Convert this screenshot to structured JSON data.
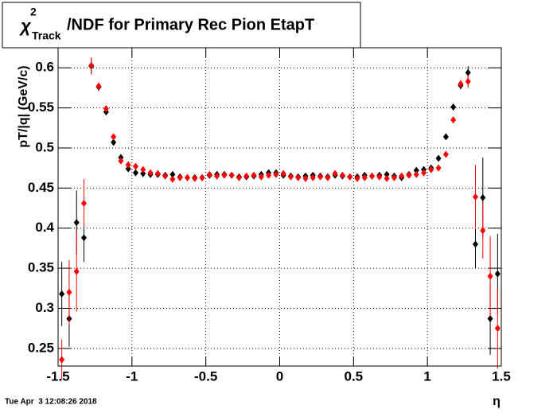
{
  "chart_data": {
    "type": "scatter",
    "title": {
      "symbol": "χ",
      "superscript": "2",
      "subscript": "Track",
      "text": "/NDF for Primary Rec Pion EtapT"
    },
    "y_label": "pT/|q| (GeV/c)",
    "x_label": "η",
    "timestamp": "Tue Apr  3 12:08:26 2018",
    "xlim": [
      -1.5,
      1.5
    ],
    "xticks": [
      -1.5,
      -1,
      -0.5,
      0,
      0.5,
      1,
      1.5
    ],
    "ylim": [
      0.228,
      0.625
    ],
    "yticks": [
      0.25,
      0.3,
      0.35,
      0.4,
      0.45,
      0.5,
      0.55,
      0.6
    ],
    "grid": true,
    "x": [
      -1.475,
      -1.425,
      -1.375,
      -1.325,
      -1.275,
      -1.225,
      -1.175,
      -1.125,
      -1.075,
      -1.025,
      -0.975,
      -0.925,
      -0.875,
      -0.825,
      -0.775,
      -0.725,
      -0.675,
      -0.625,
      -0.575,
      -0.525,
      -0.475,
      -0.425,
      -0.375,
      -0.325,
      -0.275,
      -0.225,
      -0.175,
      -0.125,
      -0.075,
      -0.025,
      0.025,
      0.075,
      0.125,
      0.175,
      0.225,
      0.275,
      0.325,
      0.375,
      0.425,
      0.475,
      0.525,
      0.575,
      0.625,
      0.675,
      0.725,
      0.775,
      0.825,
      0.875,
      0.925,
      0.975,
      1.025,
      1.075,
      1.125,
      1.175,
      1.225,
      1.275,
      1.325,
      1.375,
      1.425,
      1.475
    ],
    "series": [
      {
        "color": "#000000",
        "values": [
          0.318,
          0.287,
          0.407,
          0.388,
          0.602,
          0.576,
          0.545,
          0.507,
          0.488,
          0.474,
          0.469,
          0.468,
          0.467,
          0.467,
          0.466,
          0.467,
          0.464,
          0.463,
          0.463,
          0.463,
          0.466,
          0.467,
          0.467,
          0.466,
          0.464,
          0.464,
          0.465,
          0.467,
          0.469,
          0.469,
          0.466,
          0.465,
          0.464,
          0.465,
          0.466,
          0.465,
          0.464,
          0.466,
          0.465,
          0.464,
          0.464,
          0.466,
          0.465,
          0.466,
          0.467,
          0.465,
          0.463,
          0.467,
          0.472,
          0.473,
          0.475,
          0.487,
          0.514,
          0.551,
          0.578,
          0.594,
          0.38,
          0.438,
          0.287,
          0.343
        ],
        "errors": [
          0.04,
          0.035,
          0.04,
          0.03,
          0.01,
          0.005,
          0.004,
          0.004,
          0.003,
          0.003,
          0.002,
          0.002,
          0.002,
          0.002,
          0.002,
          0.002,
          0.002,
          0.002,
          0.002,
          0.002,
          0.002,
          0.002,
          0.002,
          0.002,
          0.002,
          0.002,
          0.002,
          0.002,
          0.002,
          0.002,
          0.002,
          0.002,
          0.002,
          0.002,
          0.002,
          0.002,
          0.002,
          0.002,
          0.002,
          0.002,
          0.002,
          0.002,
          0.002,
          0.002,
          0.002,
          0.002,
          0.002,
          0.002,
          0.002,
          0.002,
          0.003,
          0.003,
          0.004,
          0.004,
          0.005,
          0.008,
          0.03,
          0.05,
          0.045,
          0.05
        ]
      },
      {
        "color": "#ff0000",
        "values": [
          0.236,
          0.32,
          0.346,
          0.431,
          0.603,
          0.577,
          0.549,
          0.514,
          0.484,
          0.479,
          0.477,
          0.473,
          0.469,
          0.468,
          0.465,
          0.461,
          0.463,
          0.463,
          0.462,
          0.463,
          0.467,
          0.465,
          0.466,
          0.466,
          0.463,
          0.465,
          0.466,
          0.464,
          0.466,
          0.467,
          0.468,
          0.464,
          0.463,
          0.462,
          0.463,
          0.464,
          0.463,
          0.468,
          0.466,
          0.464,
          0.462,
          0.463,
          0.465,
          0.464,
          0.462,
          0.463,
          0.465,
          0.466,
          0.467,
          0.469,
          0.473,
          0.475,
          0.492,
          0.535,
          0.58,
          0.583,
          0.439,
          0.397,
          0.34,
          0.275
        ],
        "errors": [
          0.025,
          0.04,
          0.05,
          0.03,
          0.01,
          0.005,
          0.004,
          0.004,
          0.003,
          0.003,
          0.002,
          0.002,
          0.002,
          0.002,
          0.002,
          0.002,
          0.002,
          0.002,
          0.002,
          0.002,
          0.002,
          0.002,
          0.002,
          0.002,
          0.002,
          0.002,
          0.002,
          0.002,
          0.002,
          0.002,
          0.002,
          0.002,
          0.002,
          0.002,
          0.002,
          0.002,
          0.002,
          0.002,
          0.002,
          0.002,
          0.002,
          0.002,
          0.002,
          0.002,
          0.002,
          0.002,
          0.002,
          0.002,
          0.002,
          0.002,
          0.003,
          0.003,
          0.004,
          0.004,
          0.005,
          0.008,
          0.04,
          0.035,
          0.05,
          0.05
        ]
      }
    ]
  }
}
